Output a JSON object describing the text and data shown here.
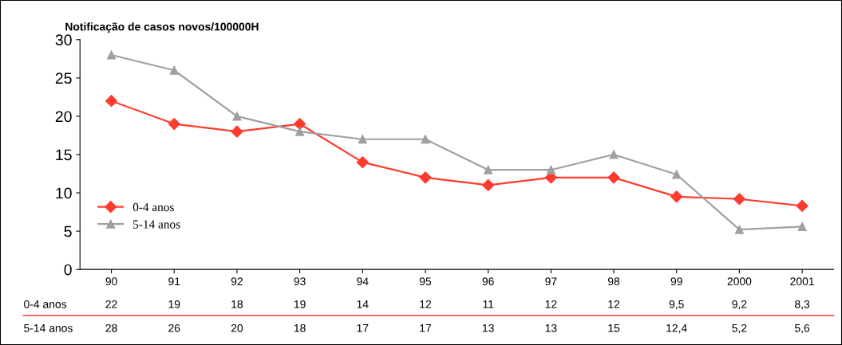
{
  "chart_data": {
    "type": "line",
    "ylabel": "Notificação de casos novos/100000H",
    "categories": [
      "90",
      "91",
      "92",
      "93",
      "94",
      "95",
      "96",
      "97",
      "98",
      "99",
      "2000",
      "2001"
    ],
    "series": [
      {
        "name": "0-4 anos",
        "color": "#ff3b30",
        "marker": "diamond",
        "values": [
          22,
          19,
          18,
          19,
          14,
          12,
          11,
          12,
          12,
          9.5,
          9.2,
          8.3
        ],
        "value_labels": [
          "22",
          "19",
          "18",
          "19",
          "14",
          "12",
          "11",
          "12",
          "12",
          "9,5",
          "9,2",
          "8,3"
        ]
      },
      {
        "name": "5-14 anos",
        "color": "#a0a0a0",
        "marker": "triangle",
        "values": [
          28,
          26,
          20,
          18,
          17,
          17,
          13,
          13,
          15,
          12.4,
          5.2,
          5.6
        ],
        "value_labels": [
          "28",
          "26",
          "20",
          "18",
          "17",
          "17",
          "13",
          "13",
          "15",
          "12,4",
          "5,2",
          "5,6"
        ]
      }
    ],
    "ylim": [
      0,
      30
    ],
    "yticks": [
      0,
      5,
      10,
      15,
      20,
      25,
      30
    ],
    "grid": false,
    "legend": "bottom left",
    "line_style": "solid"
  }
}
